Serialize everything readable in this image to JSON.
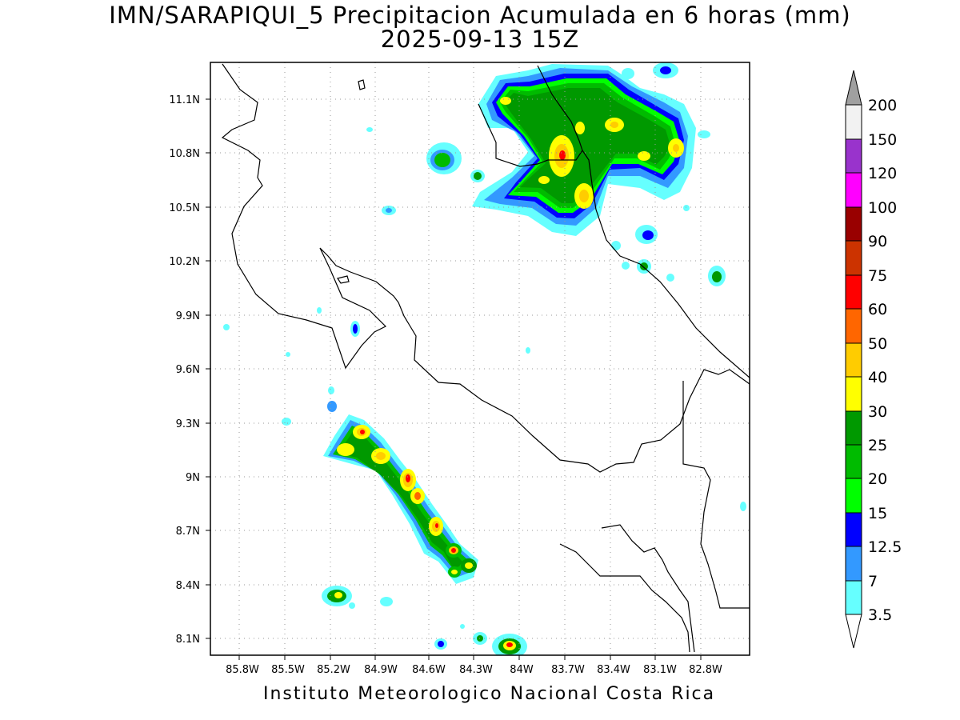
{
  "title": {
    "line1": "IMN/SARAPIQUI_5 Precipitacion Acumulada en 6 horas (mm)",
    "line2": "2025-09-13 15Z"
  },
  "footer": "Instituto Meteorologico Nacional Costa Rica",
  "map": {
    "lon_labels": [
      "85.8W",
      "85.5W",
      "85.2W",
      "84.9W",
      "84.6W",
      "84.3W",
      "84W",
      "83.7W",
      "83.4W",
      "83.1W",
      "82.8W"
    ],
    "lat_labels": [
      "11.1N",
      "10.8N",
      "10.5N",
      "10.2N",
      "9.9N",
      "9.6N",
      "9.3N",
      "9N",
      "8.7N",
      "8.4N",
      "8.1N"
    ],
    "grid": "dotted"
  },
  "colorbar": {
    "labels": [
      "200",
      "150",
      "120",
      "100",
      "90",
      "75",
      "60",
      "50",
      "40",
      "30",
      "25",
      "20",
      "15",
      "12.5",
      "7",
      "3.5"
    ],
    "colors": [
      "#a0a0a0",
      "#f2f2f2",
      "#9933cc",
      "#ff00ff",
      "#990000",
      "#cc3300",
      "#ff0000",
      "#ff6600",
      "#ffcc00",
      "#ffff00",
      "#009900",
      "#00bb00",
      "#00ff00",
      "#0000ff",
      "#3399ff",
      "#66ffff",
      "#ffffff"
    ]
  }
}
